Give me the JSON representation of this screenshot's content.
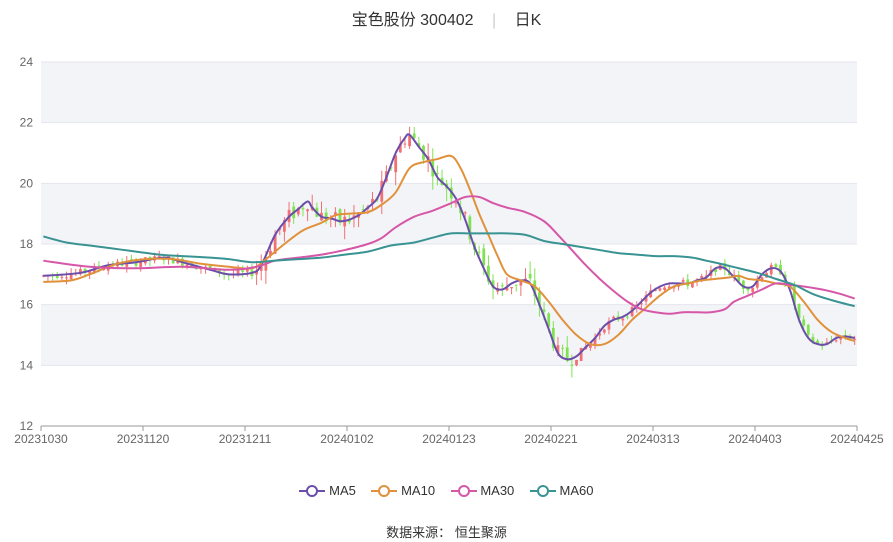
{
  "title": {
    "name": "宝色股份 300402",
    "period": "日K"
  },
  "source": {
    "label": "数据来源：",
    "provider": "恒生聚源"
  },
  "colors": {
    "up": "#f26f74",
    "down": "#7fe34f",
    "MA5": "#6a4eaa",
    "MA10": "#e0913a",
    "MA30": "#d657a8",
    "MA60": "#3a9393"
  },
  "chart_data": {
    "type": "candlestick",
    "ylim": [
      12,
      24
    ],
    "y_ticks": [
      "12",
      "14",
      "16",
      "18",
      "20",
      "22",
      "24"
    ],
    "x_ticks": [
      "20231030",
      "20231120",
      "20231211",
      "20240102",
      "20240123",
      "20240221",
      "20240313",
      "20240403",
      "20240425"
    ],
    "grid": true,
    "legend_position": "bottom",
    "ma_series": [
      {
        "name": "MA5",
        "points": [
          [
            0,
            16.95
          ],
          [
            8,
            17.05
          ],
          [
            14,
            17.3
          ],
          [
            20,
            17.4
          ],
          [
            26,
            17.55
          ],
          [
            30,
            17.4
          ],
          [
            36,
            17.15
          ],
          [
            40,
            17.0
          ],
          [
            45,
            17.05
          ],
          [
            47,
            17.3
          ],
          [
            50,
            18.3
          ],
          [
            53,
            18.9
          ],
          [
            55,
            19.15
          ],
          [
            57,
            19.4
          ],
          [
            58,
            19.2
          ],
          [
            60,
            18.9
          ],
          [
            62,
            18.85
          ],
          [
            64,
            18.75
          ],
          [
            66,
            18.8
          ],
          [
            68,
            18.95
          ],
          [
            70,
            19.2
          ],
          [
            72,
            19.5
          ],
          [
            74,
            20.2
          ],
          [
            76,
            21.0
          ],
          [
            78,
            21.5
          ],
          [
            79,
            21.6
          ],
          [
            81,
            21.2
          ],
          [
            83,
            20.8
          ],
          [
            85,
            20.2
          ],
          [
            87,
            19.9
          ],
          [
            89,
            19.5
          ],
          [
            91,
            18.8
          ],
          [
            93,
            17.9
          ],
          [
            95,
            17.2
          ],
          [
            97,
            16.6
          ],
          [
            99,
            16.5
          ],
          [
            101,
            16.7
          ],
          [
            103,
            16.8
          ],
          [
            105,
            16.7
          ],
          [
            107,
            16.0
          ],
          [
            109,
            15.2
          ],
          [
            111,
            14.4
          ],
          [
            113,
            14.2
          ],
          [
            115,
            14.3
          ],
          [
            117,
            14.6
          ],
          [
            119,
            14.9
          ],
          [
            121,
            15.3
          ],
          [
            123,
            15.5
          ],
          [
            125,
            15.6
          ],
          [
            127,
            15.8
          ],
          [
            129,
            16.1
          ],
          [
            131,
            16.4
          ],
          [
            133,
            16.6
          ],
          [
            135,
            16.7
          ],
          [
            137,
            16.7
          ],
          [
            139,
            16.7
          ],
          [
            141,
            16.8
          ],
          [
            143,
            16.9
          ],
          [
            145,
            17.2
          ],
          [
            147,
            17.2
          ],
          [
            149,
            16.9
          ],
          [
            151,
            16.6
          ],
          [
            153,
            16.6
          ],
          [
            155,
            17.0
          ],
          [
            157,
            17.2
          ],
          [
            159,
            17.1
          ],
          [
            161,
            16.5
          ],
          [
            163,
            15.5
          ],
          [
            165,
            14.9
          ],
          [
            167,
            14.7
          ],
          [
            169,
            14.7
          ],
          [
            171,
            14.9
          ],
          [
            173,
            14.95
          ],
          [
            175,
            14.9
          ]
        ]
      },
      {
        "name": "MA10",
        "points": [
          [
            0,
            16.75
          ],
          [
            6,
            16.8
          ],
          [
            10,
            17.0
          ],
          [
            16,
            17.35
          ],
          [
            22,
            17.5
          ],
          [
            28,
            17.5
          ],
          [
            34,
            17.35
          ],
          [
            40,
            17.25
          ],
          [
            45,
            17.2
          ],
          [
            48,
            17.5
          ],
          [
            52,
            18.0
          ],
          [
            56,
            18.45
          ],
          [
            60,
            18.7
          ],
          [
            63,
            18.95
          ],
          [
            66,
            19.0
          ],
          [
            70,
            19.05
          ],
          [
            73,
            19.3
          ],
          [
            76,
            19.7
          ],
          [
            79,
            20.5
          ],
          [
            82,
            20.7
          ],
          [
            85,
            20.8
          ],
          [
            88,
            20.9
          ],
          [
            90,
            20.5
          ],
          [
            92,
            19.8
          ],
          [
            94,
            19.0
          ],
          [
            96,
            18.3
          ],
          [
            98,
            17.6
          ],
          [
            100,
            17.0
          ],
          [
            103,
            16.8
          ],
          [
            106,
            16.6
          ],
          [
            109,
            16.1
          ],
          [
            112,
            15.5
          ],
          [
            115,
            15.0
          ],
          [
            118,
            14.7
          ],
          [
            121,
            14.7
          ],
          [
            124,
            15.0
          ],
          [
            127,
            15.5
          ],
          [
            130,
            15.9
          ],
          [
            133,
            16.3
          ],
          [
            136,
            16.6
          ],
          [
            139,
            16.7
          ],
          [
            142,
            16.8
          ],
          [
            145,
            16.85
          ],
          [
            148,
            16.9
          ],
          [
            150,
            16.95
          ],
          [
            152,
            16.85
          ],
          [
            155,
            16.8
          ],
          [
            158,
            16.7
          ],
          [
            161,
            16.6
          ],
          [
            164,
            16.1
          ],
          [
            167,
            15.5
          ],
          [
            170,
            15.1
          ],
          [
            173,
            14.9
          ],
          [
            175,
            14.8
          ]
        ]
      },
      {
        "name": "MA30",
        "points": [
          [
            0,
            17.45
          ],
          [
            10,
            17.25
          ],
          [
            20,
            17.2
          ],
          [
            30,
            17.25
          ],
          [
            40,
            17.15
          ],
          [
            46,
            17.25
          ],
          [
            50,
            17.45
          ],
          [
            55,
            17.55
          ],
          [
            60,
            17.65
          ],
          [
            65,
            17.8
          ],
          [
            70,
            18.0
          ],
          [
            73,
            18.2
          ],
          [
            76,
            18.55
          ],
          [
            80,
            18.9
          ],
          [
            84,
            19.1
          ],
          [
            88,
            19.35
          ],
          [
            91,
            19.55
          ],
          [
            94,
            19.55
          ],
          [
            97,
            19.35
          ],
          [
            100,
            19.2
          ],
          [
            104,
            19.05
          ],
          [
            108,
            18.75
          ],
          [
            111,
            18.3
          ],
          [
            114,
            17.8
          ],
          [
            117,
            17.3
          ],
          [
            120,
            16.85
          ],
          [
            123,
            16.45
          ],
          [
            126,
            16.1
          ],
          [
            129,
            15.85
          ],
          [
            132,
            15.75
          ],
          [
            135,
            15.7
          ],
          [
            138,
            15.75
          ],
          [
            141,
            15.75
          ],
          [
            144,
            15.75
          ],
          [
            147,
            15.85
          ],
          [
            149,
            16.1
          ],
          [
            152,
            16.3
          ],
          [
            155,
            16.5
          ],
          [
            158,
            16.7
          ],
          [
            161,
            16.65
          ],
          [
            164,
            16.6
          ],
          [
            168,
            16.5
          ],
          [
            172,
            16.35
          ],
          [
            175,
            16.2
          ]
        ]
      },
      {
        "name": "MA60",
        "points": [
          [
            0,
            18.25
          ],
          [
            5,
            18.05
          ],
          [
            10,
            17.95
          ],
          [
            15,
            17.85
          ],
          [
            20,
            17.75
          ],
          [
            25,
            17.65
          ],
          [
            30,
            17.6
          ],
          [
            36,
            17.55
          ],
          [
            40,
            17.5
          ],
          [
            45,
            17.4
          ],
          [
            50,
            17.45
          ],
          [
            55,
            17.5
          ],
          [
            60,
            17.55
          ],
          [
            65,
            17.65
          ],
          [
            70,
            17.75
          ],
          [
            75,
            17.95
          ],
          [
            80,
            18.05
          ],
          [
            85,
            18.25
          ],
          [
            88,
            18.35
          ],
          [
            92,
            18.35
          ],
          [
            96,
            18.35
          ],
          [
            100,
            18.35
          ],
          [
            104,
            18.3
          ],
          [
            108,
            18.1
          ],
          [
            112,
            18.0
          ],
          [
            116,
            17.9
          ],
          [
            120,
            17.8
          ],
          [
            124,
            17.7
          ],
          [
            128,
            17.65
          ],
          [
            132,
            17.6
          ],
          [
            136,
            17.6
          ],
          [
            140,
            17.55
          ],
          [
            143,
            17.45
          ],
          [
            146,
            17.35
          ],
          [
            150,
            17.2
          ],
          [
            154,
            17.05
          ],
          [
            158,
            16.85
          ],
          [
            162,
            16.65
          ],
          [
            166,
            16.35
          ],
          [
            170,
            16.15
          ],
          [
            175,
            15.95
          ]
        ]
      }
    ]
  },
  "legend": [
    {
      "name": "MA5",
      "color": "#6a4eaa"
    },
    {
      "name": "MA10",
      "color": "#e0913a"
    },
    {
      "name": "MA30",
      "color": "#d657a8"
    },
    {
      "name": "MA60",
      "color": "#3a9393"
    }
  ]
}
